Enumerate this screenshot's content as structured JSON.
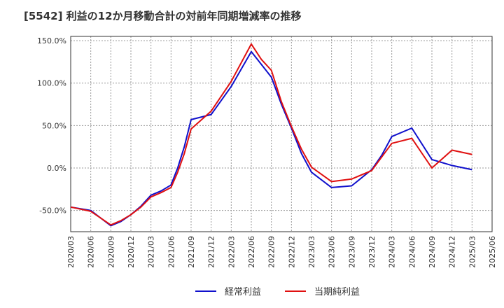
{
  "chart_data": {
    "type": "line",
    "title": "[5542]  利益の12か月移動合計の対前年同期増減率の推移",
    "xlabel": "",
    "ylabel": "",
    "ylim": [
      -75,
      155
    ],
    "yticks": [
      150,
      100,
      50,
      0,
      -50
    ],
    "ytick_labels": [
      "150.0%",
      "100.0%",
      "50.0%",
      "0.0%",
      "-50.0%"
    ],
    "xtick_labels": [
      "2020/03",
      "2020/06",
      "2020/09",
      "2020/12",
      "2021/03",
      "2021/06",
      "2021/09",
      "2021/12",
      "2022/03",
      "2022/06",
      "2022/09",
      "2022/12",
      "2023/03",
      "2023/06",
      "2023/09",
      "2023/12",
      "2024/03",
      "2024/06",
      "2024/09",
      "2024/12",
      "2025/03",
      "2025/06"
    ],
    "grid": true,
    "legend_position": "bottom",
    "series": [
      {
        "name": "経常利益",
        "color": "#1010cc",
        "points": [
          [
            0,
            -46
          ],
          [
            1,
            -50
          ],
          [
            2,
            -68
          ],
          [
            2.5,
            -63
          ],
          [
            3,
            -55
          ],
          [
            3.5,
            -45
          ],
          [
            4,
            -32
          ],
          [
            4.5,
            -27
          ],
          [
            5,
            -20
          ],
          [
            5.33,
            0
          ],
          [
            5.66,
            25
          ],
          [
            6,
            57
          ],
          [
            7,
            63
          ],
          [
            8,
            96
          ],
          [
            9,
            137
          ],
          [
            10,
            107
          ],
          [
            10.5,
            75
          ],
          [
            11,
            47
          ],
          [
            11.5,
            17
          ],
          [
            12,
            -5
          ],
          [
            13,
            -23
          ],
          [
            14,
            -21
          ],
          [
            15,
            -2
          ],
          [
            15.5,
            15
          ],
          [
            16,
            37
          ],
          [
            17,
            47
          ],
          [
            18,
            10
          ],
          [
            19,
            3
          ],
          [
            20,
            -2
          ]
        ]
      },
      {
        "name": "当期純利益",
        "color": "#e01010",
        "points": [
          [
            0,
            -46
          ],
          [
            1,
            -51
          ],
          [
            2,
            -67
          ],
          [
            2.5,
            -62
          ],
          [
            3,
            -55
          ],
          [
            3.5,
            -46
          ],
          [
            4,
            -34
          ],
          [
            4.5,
            -29
          ],
          [
            5,
            -23
          ],
          [
            5.33,
            -5
          ],
          [
            5.66,
            17
          ],
          [
            6,
            46
          ],
          [
            7,
            67
          ],
          [
            8,
            102
          ],
          [
            9,
            146
          ],
          [
            9.5,
            128
          ],
          [
            10,
            115
          ],
          [
            10.5,
            78
          ],
          [
            11,
            49
          ],
          [
            11.5,
            22
          ],
          [
            12,
            1
          ],
          [
            13,
            -16
          ],
          [
            14,
            -13
          ],
          [
            15,
            -3
          ],
          [
            16,
            29
          ],
          [
            17,
            35
          ],
          [
            18,
            0
          ],
          [
            19,
            21
          ],
          [
            20,
            16
          ]
        ]
      }
    ]
  }
}
